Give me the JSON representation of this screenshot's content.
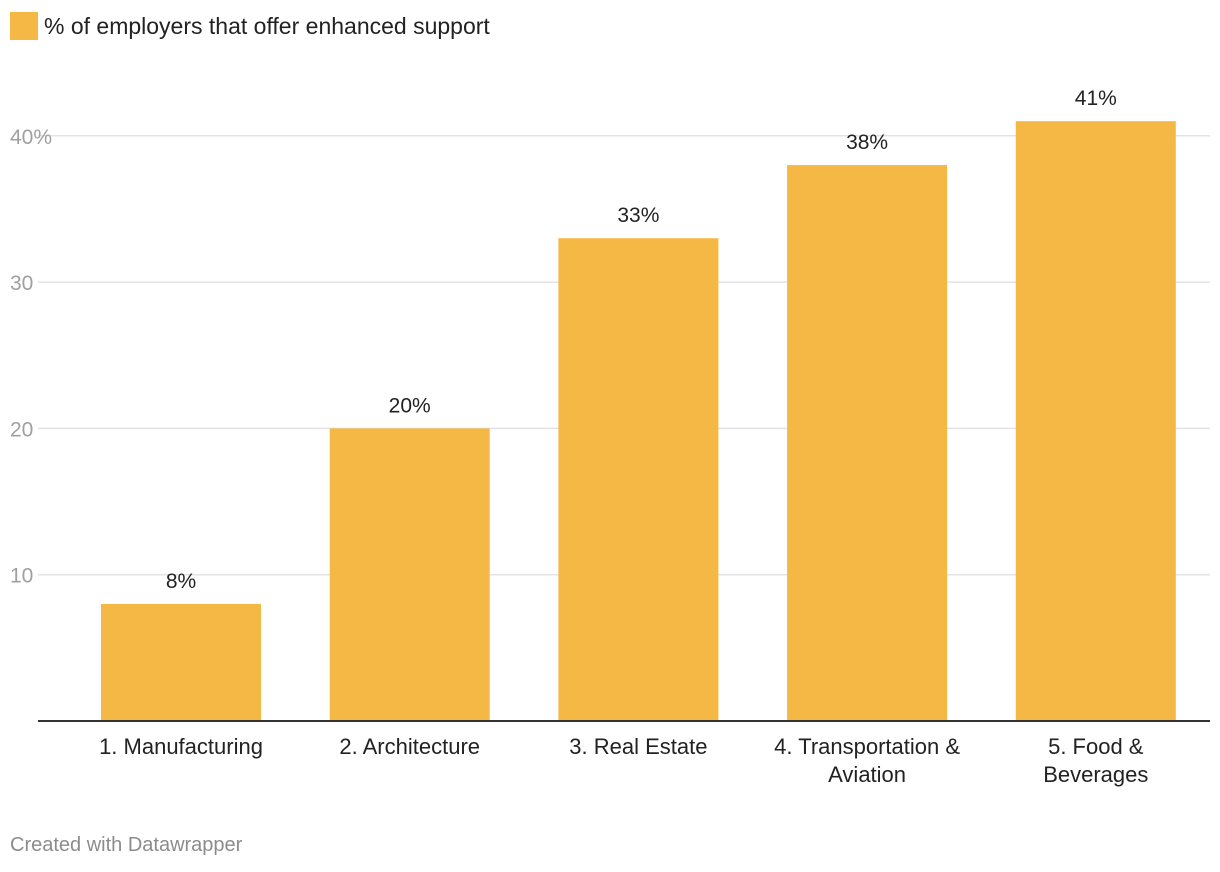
{
  "legend": {
    "label": "% of employers that offer enhanced support",
    "color": "#f6b844"
  },
  "chart_data": {
    "type": "bar",
    "categories": [
      [
        "1. Manufacturing"
      ],
      [
        "2. Architecture"
      ],
      [
        "3. Real Estate"
      ],
      [
        "4. Transportation &",
        "Aviation"
      ],
      [
        "5. Food &",
        "Beverages"
      ]
    ],
    "series": [
      {
        "name": "% of employers that offer enhanced support",
        "values": [
          8,
          20,
          33,
          38,
          41
        ],
        "labels": [
          "8%",
          "20%",
          "33%",
          "38%",
          "41%"
        ]
      }
    ],
    "yticks": [
      10,
      20,
      30,
      40
    ],
    "ytick_labels": [
      "10",
      "20",
      "30",
      "40%"
    ],
    "ylim": [
      0,
      40
    ],
    "grid": true,
    "title": "",
    "xlabel": "",
    "ylabel": "",
    "colors": {
      "bar": "#f6b844",
      "grid": "#e3e3e3",
      "axis": "#333333",
      "tick_label": "#a0a0a0",
      "text": "#222222"
    }
  },
  "footer": {
    "credit": "Created with Datawrapper"
  }
}
